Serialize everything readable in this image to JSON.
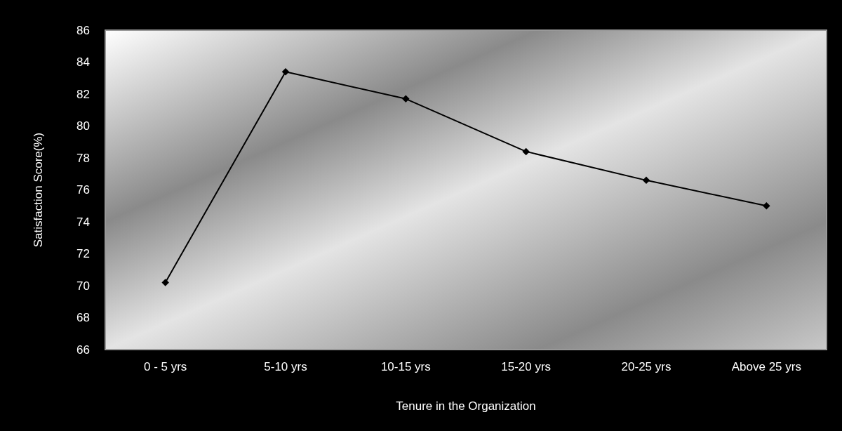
{
  "chart_data": {
    "type": "line",
    "xlabel": "Tenure in the Organization",
    "ylabel": "Satisfaction Score(%)",
    "categories": [
      "0 - 5 yrs",
      "5-10 yrs",
      "10-15 yrs",
      "15-20 yrs",
      "20-25 yrs",
      "Above 25 yrs"
    ],
    "series": [
      {
        "color": "#000000",
        "values": [
          70.2,
          83.4,
          81.7,
          78.4,
          76.6,
          75.0
        ]
      }
    ],
    "ylim": [
      66,
      86
    ],
    "yticks": [
      66,
      68,
      70,
      72,
      74,
      76,
      78,
      80,
      82,
      84,
      86
    ],
    "grid": false,
    "marker": "diamond",
    "line_style": "solid"
  }
}
